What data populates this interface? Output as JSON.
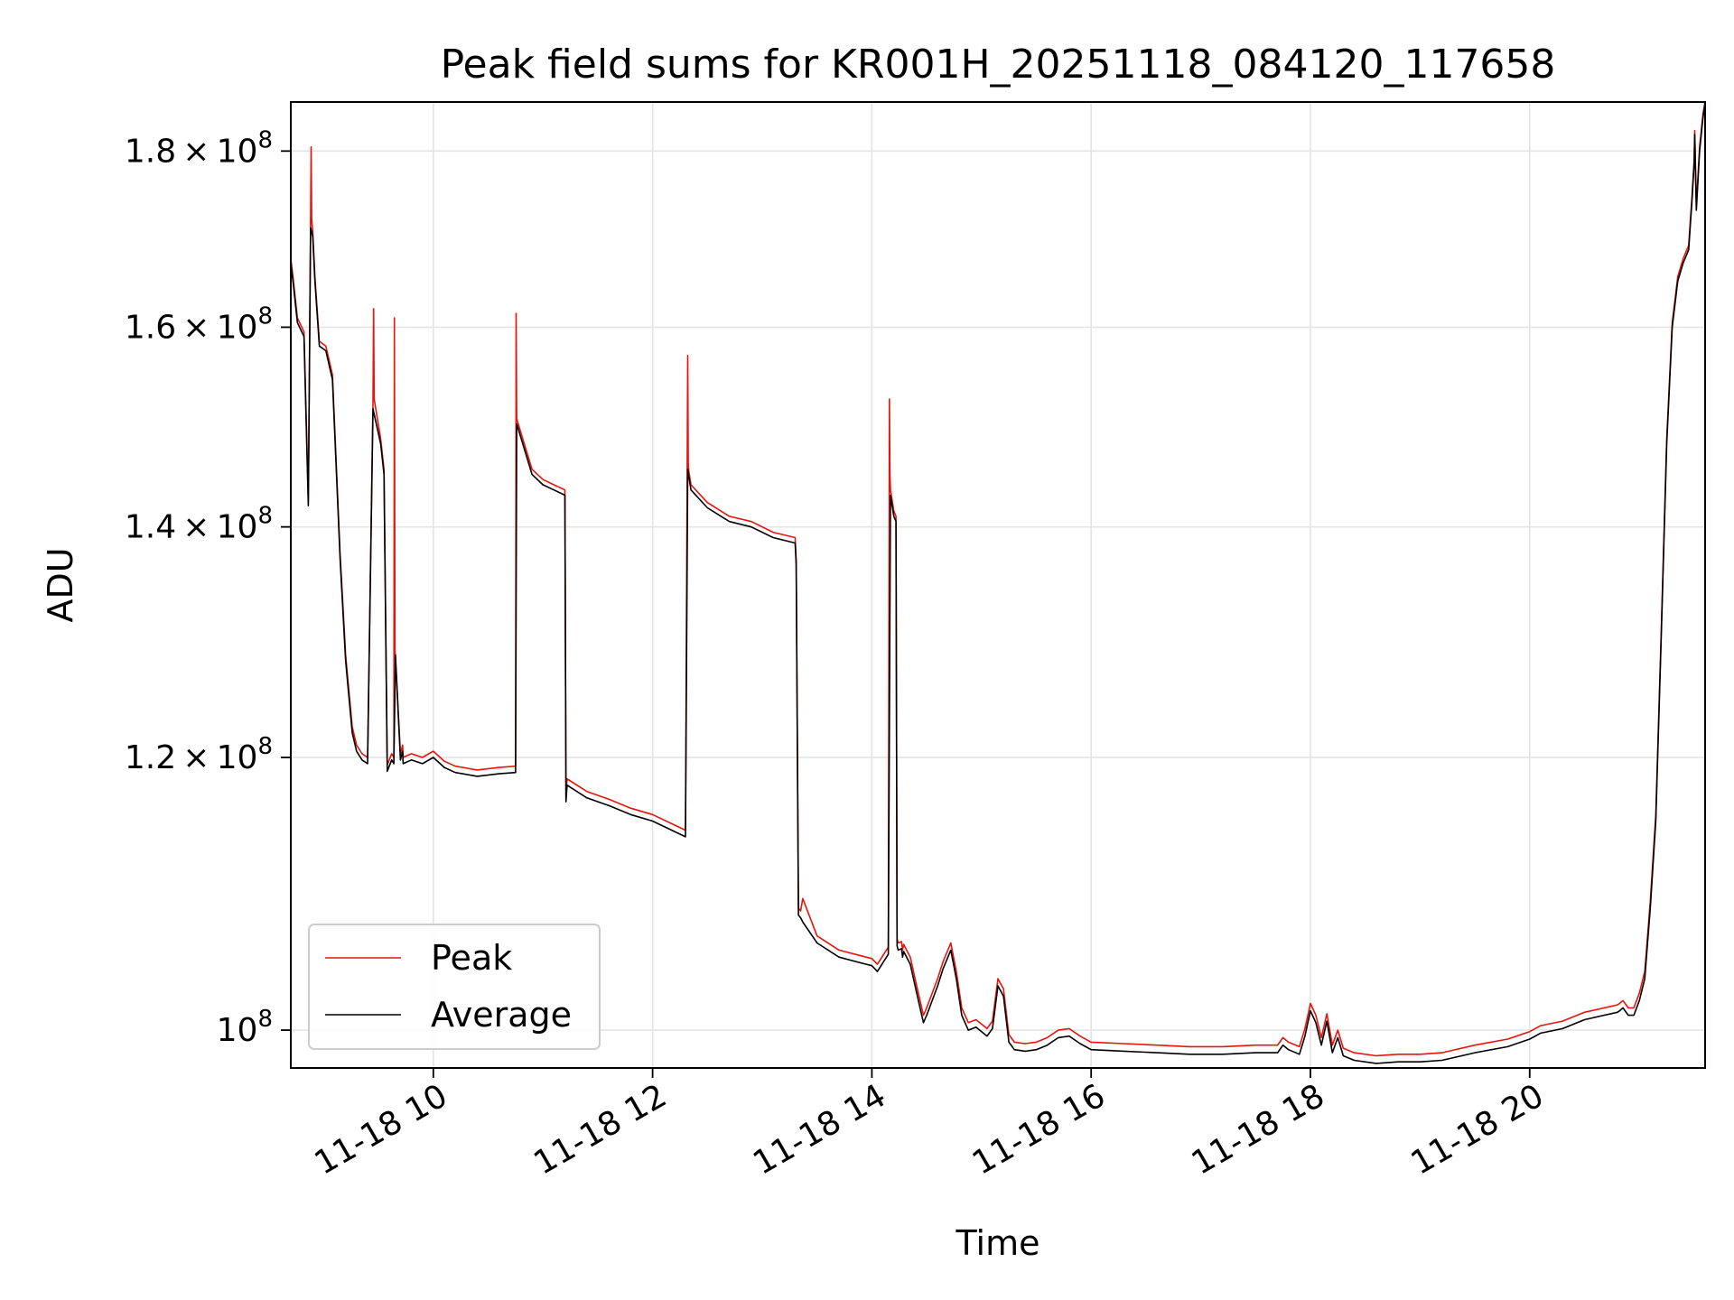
{
  "chart_data": {
    "type": "line",
    "title": "Peak field sums for KR001H_20251118_084120_117658",
    "xlabel": "Time",
    "ylabel": "ADU",
    "yscale": "log",
    "xlim": [
      8.7,
      21.6
    ],
    "ylim": [
      97500000,
      186000000
    ],
    "grid": true,
    "legend_position": "lower-left",
    "x_ticks": [
      {
        "value": 10,
        "label": "11-18 10"
      },
      {
        "value": 12,
        "label": "11-18 12"
      },
      {
        "value": 14,
        "label": "11-18 14"
      },
      {
        "value": 16,
        "label": "11-18 16"
      },
      {
        "value": 18,
        "label": "11-18 18"
      },
      {
        "value": 20,
        "label": "11-18 20"
      }
    ],
    "y_ticks": [
      {
        "value": 100000000,
        "mantissa": "",
        "exponent": "8"
      },
      {
        "value": 120000000,
        "mantissa": "1.2",
        "exponent": "8"
      },
      {
        "value": 140000000,
        "mantissa": "1.4",
        "exponent": "8"
      },
      {
        "value": 160000000,
        "mantissa": "1.6",
        "exponent": "8"
      },
      {
        "value": 180000000,
        "mantissa": "1.8",
        "exponent": "8"
      }
    ],
    "y_tick_times": "×",
    "y_tick_base": "10",
    "series": [
      {
        "name": "Average",
        "color": "#000000",
        "x": [
          8.7,
          8.72,
          8.76,
          8.82,
          8.86,
          8.88,
          8.9,
          8.92,
          8.96,
          9.02,
          9.08,
          9.15,
          9.2,
          9.26,
          9.3,
          9.35,
          9.4,
          9.45,
          9.52,
          9.55,
          9.58,
          9.62,
          9.64,
          9.655,
          9.7,
          9.72,
          9.725,
          9.8,
          9.9,
          10.0,
          10.1,
          10.2,
          10.4,
          10.6,
          10.75,
          10.76,
          10.9,
          11.0,
          11.1,
          11.2,
          11.21,
          11.22,
          11.4,
          11.6,
          11.8,
          12.0,
          12.2,
          12.3,
          12.32,
          12.33,
          12.35,
          12.5,
          12.7,
          12.9,
          13.1,
          13.3,
          13.31,
          13.33,
          13.34,
          13.35,
          13.37,
          13.5,
          13.7,
          13.9,
          14.0,
          14.05,
          14.15,
          14.17,
          14.2,
          14.22,
          14.23,
          14.24,
          14.27,
          14.28,
          14.29,
          14.35,
          14.43,
          14.47,
          14.5,
          14.6,
          14.65,
          14.72,
          14.77,
          14.82,
          14.88,
          14.95,
          15.0,
          15.05,
          15.1,
          15.15,
          15.2,
          15.25,
          15.3,
          15.4,
          15.5,
          15.6,
          15.7,
          15.8,
          15.9,
          16.0,
          16.3,
          16.6,
          16.9,
          17.2,
          17.5,
          17.7,
          17.75,
          17.8,
          17.9,
          17.95,
          18.0,
          18.05,
          18.1,
          18.15,
          18.2,
          18.25,
          18.3,
          18.4,
          18.6,
          18.8,
          19.0,
          19.2,
          19.5,
          19.8,
          20.0,
          20.1,
          20.3,
          20.5,
          20.8,
          20.82,
          20.85,
          20.9,
          20.95,
          21.0,
          21.05,
          21.1,
          21.15,
          21.2,
          21.25,
          21.3,
          21.35,
          21.4,
          21.45,
          21.48,
          21.5,
          21.505,
          21.52,
          21.55,
          21.58,
          21.6
        ],
        "values": [
          167000000,
          165000000,
          160500000,
          159000000,
          142000000,
          171000000,
          170000000,
          165000000,
          158000000,
          157500000,
          154500000,
          137000000,
          128000000,
          122000000,
          120500000,
          119800000,
          119500000,
          151500000,
          148000000,
          145000000,
          118900000,
          119800000,
          119500000,
          128500000,
          119800000,
          120500000,
          119500000,
          119800000,
          119500000,
          120000000,
          119200000,
          118800000,
          118500000,
          118700000,
          118800000,
          150000000,
          145000000,
          144000000,
          143500000,
          143000000,
          116500000,
          117800000,
          116800000,
          116200000,
          115500000,
          115000000,
          114200000,
          113800000,
          145500000,
          144800000,
          143500000,
          141800000,
          140500000,
          140000000,
          139000000,
          138500000,
          136500000,
          108000000,
          107900000,
          107800000,
          107500000,
          106000000,
          105000000,
          104600000,
          104400000,
          104000000,
          105200000,
          143000000,
          141000000,
          140500000,
          105800000,
          105500000,
          105600000,
          105000000,
          105400000,
          104500000,
          101800000,
          100500000,
          101000000,
          103000000,
          104200000,
          105500000,
          103500000,
          101000000,
          100000000,
          100200000,
          99900000,
          99600000,
          100100000,
          103000000,
          102300000,
          99200000,
          98700000,
          98600000,
          98700000,
          99000000,
          99500000,
          99600000,
          99100000,
          98700000,
          98600000,
          98500000,
          98400000,
          98400000,
          98500000,
          98500000,
          99000000,
          98700000,
          98400000,
          99600000,
          101300000,
          100500000,
          99000000,
          100600000,
          98500000,
          99500000,
          98300000,
          98000000,
          97800000,
          97900000,
          97900000,
          98000000,
          98500000,
          98900000,
          99400000,
          99800000,
          100100000,
          100700000,
          101200000,
          101300000,
          101500000,
          101000000,
          101000000,
          102000000,
          103500000,
          108500000,
          115000000,
          130000000,
          148000000,
          160000000,
          165000000,
          167000000,
          168500000,
          174000000,
          178500000,
          182000000,
          173000000,
          180000000,
          184000000,
          186000000
        ]
      },
      {
        "name": "Peak",
        "color": "#e8140c",
        "x": [
          8.7,
          8.72,
          8.76,
          8.82,
          8.86,
          8.88,
          8.885,
          8.89,
          8.9,
          8.92,
          8.96,
          9.02,
          9.08,
          9.15,
          9.2,
          9.26,
          9.3,
          9.35,
          9.4,
          9.45,
          9.455,
          9.46,
          9.52,
          9.55,
          9.58,
          9.62,
          9.64,
          9.645,
          9.65,
          9.7,
          9.72,
          9.725,
          9.8,
          9.9,
          10.0,
          10.1,
          10.2,
          10.4,
          10.6,
          10.75,
          10.755,
          10.76,
          10.9,
          11.0,
          11.1,
          11.2,
          11.21,
          11.22,
          11.4,
          11.6,
          11.8,
          12.0,
          12.2,
          12.3,
          12.32,
          12.325,
          12.33,
          12.35,
          12.5,
          12.7,
          12.9,
          13.1,
          13.3,
          13.31,
          13.33,
          13.34,
          13.35,
          13.37,
          13.5,
          13.7,
          13.9,
          14.0,
          14.05,
          14.15,
          14.16,
          14.165,
          14.17,
          14.2,
          14.22,
          14.23,
          14.24,
          14.27,
          14.28,
          14.29,
          14.35,
          14.43,
          14.47,
          14.5,
          14.6,
          14.65,
          14.72,
          14.77,
          14.82,
          14.88,
          14.95,
          15.0,
          15.05,
          15.1,
          15.15,
          15.2,
          15.25,
          15.3,
          15.4,
          15.5,
          15.6,
          15.7,
          15.8,
          15.9,
          16.0,
          16.3,
          16.6,
          16.9,
          17.2,
          17.5,
          17.7,
          17.75,
          17.8,
          17.9,
          17.95,
          18.0,
          18.05,
          18.1,
          18.15,
          18.2,
          18.25,
          18.3,
          18.4,
          18.6,
          18.8,
          19.0,
          19.2,
          19.5,
          19.8,
          20.0,
          20.1,
          20.3,
          20.5,
          20.8,
          20.82,
          20.85,
          20.9,
          20.95,
          21.0,
          21.05,
          21.1,
          21.15,
          21.2,
          21.25,
          21.3,
          21.35,
          21.4,
          21.45,
          21.48,
          21.5,
          21.505,
          21.52,
          21.55,
          21.58,
          21.6
        ],
        "values": [
          167500000,
          165500000,
          161000000,
          159500000,
          142500000,
          171500000,
          180500000,
          172000000,
          170500000,
          165500000,
          158500000,
          158000000,
          155000000,
          137500000,
          128500000,
          122500000,
          121000000,
          120300000,
          120000000,
          152000000,
          162000000,
          152500000,
          148500000,
          145500000,
          119400000,
          120300000,
          120000000,
          161000000,
          129000000,
          120300000,
          121000000,
          120000000,
          120300000,
          120000000,
          120500000,
          119700000,
          119300000,
          119000000,
          119200000,
          119300000,
          161500000,
          150500000,
          145500000,
          144500000,
          144000000,
          143500000,
          117000000,
          118300000,
          117300000,
          116700000,
          116000000,
          115500000,
          114700000,
          114300000,
          157000000,
          146000000,
          145300000,
          144000000,
          142300000,
          141000000,
          140500000,
          139500000,
          139000000,
          137000000,
          108500000,
          108400000,
          108300000,
          109200000,
          106500000,
          105500000,
          105100000,
          104900000,
          104500000,
          105700000,
          152500000,
          145000000,
          143500000,
          141500000,
          141000000,
          106300000,
          106000000,
          106100000,
          105500000,
          105900000,
          105000000,
          102300000,
          101000000,
          101500000,
          103500000,
          104700000,
          106000000,
          104000000,
          101500000,
          100500000,
          100700000,
          100400000,
          100100000,
          100600000,
          103500000,
          102800000,
          99700000,
          99200000,
          99100000,
          99200000,
          99500000,
          100000000,
          100100000,
          99600000,
          99200000,
          99100000,
          99000000,
          98900000,
          98900000,
          99000000,
          99000000,
          99500000,
          99200000,
          98900000,
          100100000,
          101800000,
          101000000,
          99500000,
          101100000,
          99000000,
          100000000,
          98800000,
          98500000,
          98300000,
          98400000,
          98400000,
          98500000,
          99000000,
          99400000,
          99900000,
          100300000,
          100600000,
          101200000,
          101700000,
          101800000,
          102000000,
          101500000,
          101500000,
          102500000,
          104000000,
          109000000,
          115500000,
          130500000,
          148500000,
          160500000,
          165500000,
          167500000,
          169000000,
          174500000,
          179000000,
          182500000,
          173500000,
          180500000,
          184500000,
          186000000
        ]
      }
    ]
  }
}
